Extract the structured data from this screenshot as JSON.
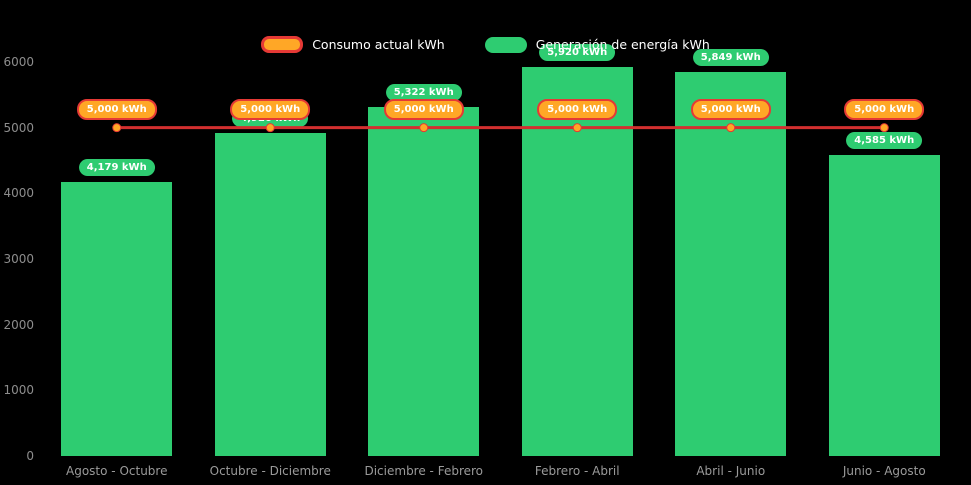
{
  "chart_data": {
    "type": "bar",
    "title": "",
    "categories": [
      "Agosto - Octubre",
      "Octubre - Diciembre",
      "Diciembre - Febrero",
      "Febrero - Abril",
      "Abril - Junio",
      "Junio - Agosto"
    ],
    "series": [
      {
        "name": "Consumo actual kWh",
        "type": "line",
        "color": "#d32f2f",
        "marker_color": "#ffa726",
        "values": [
          5000,
          5000,
          5000,
          5000,
          5000,
          5000
        ],
        "labels": [
          "5,000 kWh",
          "5,000 kWh",
          "5,000 kWh",
          "5,000 kWh",
          "5,000 kWh",
          "5,000 kWh"
        ]
      },
      {
        "name": "Generación de energía kWh",
        "type": "bar",
        "color": "#2ecc71",
        "values": [
          4179,
          4920,
          5322,
          5920,
          5849,
          4585
        ],
        "labels": [
          "4,179 kWh",
          "4,920 kWh",
          "5,322 kWh",
          "5,920 kWh",
          "5,849 kWh",
          "4,585 kWh"
        ]
      }
    ],
    "xlabel": "",
    "ylabel": "",
    "ylim": [
      0,
      6000
    ],
    "yticks": [
      0,
      1000,
      2000,
      3000,
      4000,
      5000,
      6000
    ],
    "grid": false,
    "legend_position": "top",
    "background": "#000000"
  },
  "colors": {
    "bar_green": "#2ecc71",
    "line_red": "#d32f2f",
    "marker_orange": "#ffa726",
    "marker_border_red": "#e53935",
    "axis_text": "#8d8d8d",
    "legend_text": "#ffffff",
    "background": "#000000"
  }
}
